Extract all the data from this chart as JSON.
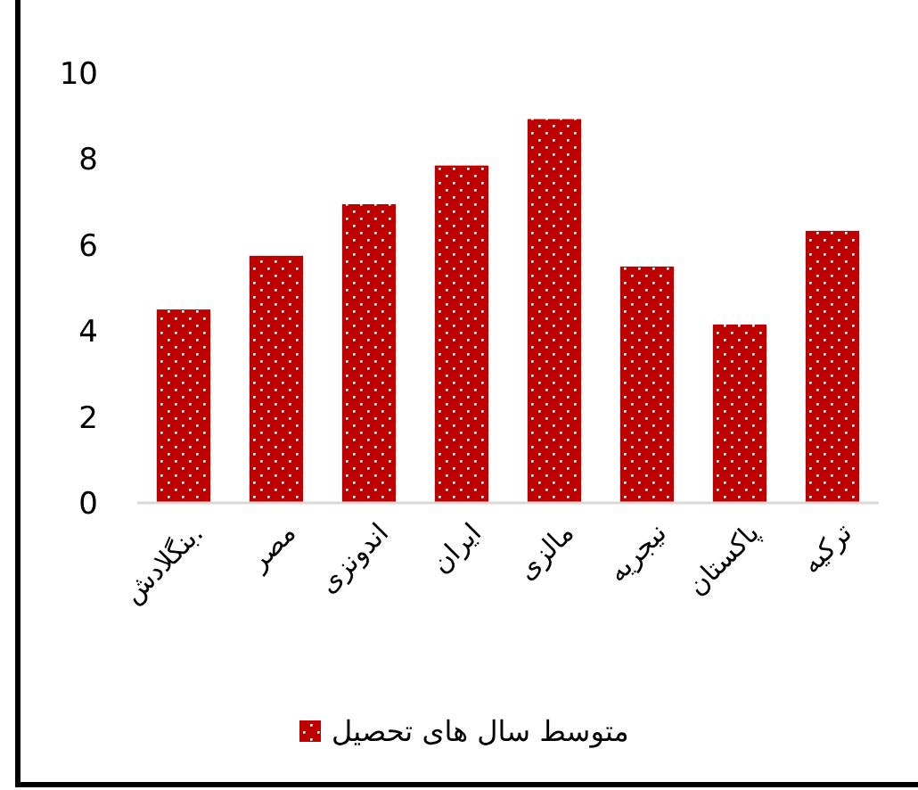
{
  "chart_data": {
    "type": "bar",
    "categories": [
      ".بنگلادش",
      "مصر",
      "اندونزی",
      "ایران",
      "مالزی",
      "نیجریه",
      "پاکستان",
      "ترکیه"
    ],
    "series": [
      {
        "name": "متوسط سال های تحصیل",
        "color": "#c00000",
        "values": [
          4.5,
          5.75,
          6.95,
          7.85,
          8.93,
          5.5,
          4.15,
          6.33
        ]
      }
    ],
    "ylim": [
      0,
      10
    ],
    "yticks": [
      0,
      2,
      4,
      6,
      8,
      10
    ],
    "grid": false,
    "legend": "bottom"
  }
}
